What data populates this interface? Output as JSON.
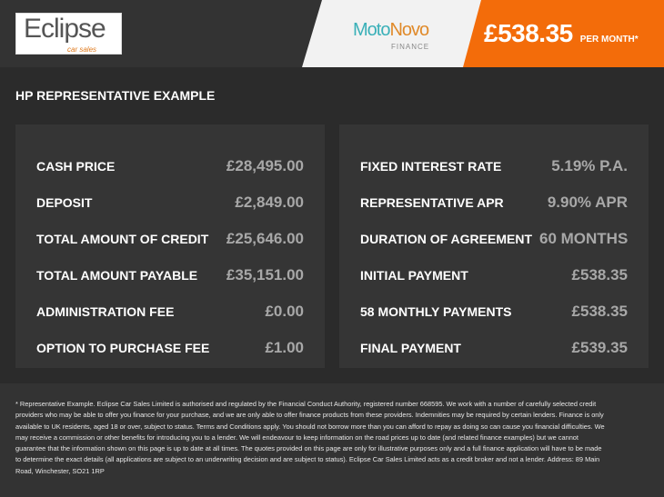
{
  "header": {
    "dealer_logo": "Eclipse car sales",
    "lender_logo": "MotoNovo FINANCE",
    "monthly_price": "£538.35",
    "per_month": "PER MONTH*",
    "colors": {
      "accent": "#f36c0a",
      "lender_teal": "#3ab0b8"
    }
  },
  "title": "HP REPRESENTATIVE EXAMPLE",
  "left": [
    {
      "label": "CASH PRICE",
      "value": "£28,495.00"
    },
    {
      "label": "DEPOSIT",
      "value": "£2,849.00"
    },
    {
      "label": "TOTAL AMOUNT OF CREDIT",
      "value": "£25,646.00"
    },
    {
      "label": "TOTAL AMOUNT PAYABLE",
      "value": "£35,151.00"
    },
    {
      "label": "ADMINISTRATION FEE",
      "value": "£0.00"
    },
    {
      "label": "OPTION TO PURCHASE FEE",
      "value": "£1.00"
    }
  ],
  "right": [
    {
      "label": "FIXED INTEREST RATE",
      "value": "5.19% P.A."
    },
    {
      "label": "REPRESENTATIVE APR",
      "value": "9.90% APR"
    },
    {
      "label": "DURATION OF AGREEMENT",
      "value": "60 MONTHS"
    },
    {
      "label": "INITIAL PAYMENT",
      "value": "£538.35"
    },
    {
      "label": "58 MONTHLY PAYMENTS",
      "value": "£538.35"
    },
    {
      "label": "FINAL PAYMENT",
      "value": "£539.35"
    }
  ],
  "disclaimer": "* Representative Example. Eclipse Car Sales Limited is authorised and regulated by the Financial Conduct Authority, registered number 668595. We work with a number of carefully selected credit providers who may be able to offer you finance for your purchase, and we are only able to offer finance products from these providers. Indemnities may be required by certain lenders. Finance is only available to UK residents, aged 18 or over, subject to status. Terms and Conditions apply. You should not borrow more than you can afford to repay as doing so can cause you financial difficulties. We may receive a commission or other benefits for introducing you to a lender. We will endeavour to keep information on the road prices up to date (and related finance examples) but we cannot guarantee that the information shown on this page is up to date at all times. The quotes provided on this page are only for illustrative purposes only and a full finance application will have to be made to determine the exact details (all applications are subject to an underwriting decision and are subject to status). Eclipse Car Sales Limited acts as a credit broker and not a lender. Address: 89 Main Road, Winchester, SO21 1RP"
}
